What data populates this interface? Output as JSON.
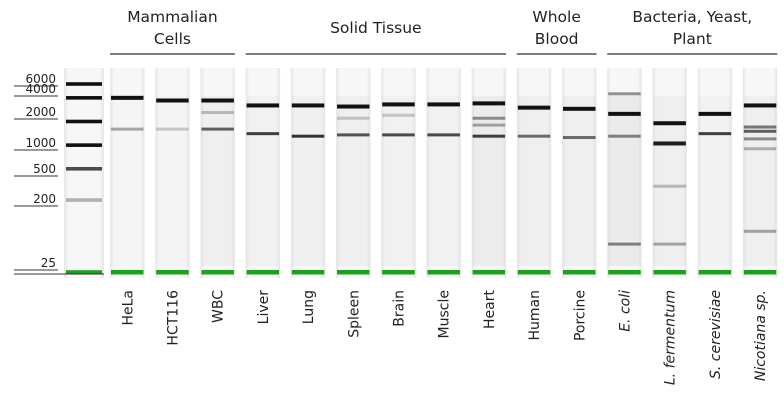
{
  "groups": [
    {
      "lines": [
        "Mammalian",
        "Cells"
      ],
      "lanes": [
        1,
        3
      ]
    },
    {
      "lines": [
        "Solid Tissue"
      ],
      "lanes": [
        4,
        9
      ]
    },
    {
      "lines": [
        "Whole",
        "Blood"
      ],
      "lanes": [
        10,
        11
      ]
    },
    {
      "lines": [
        "Bacteria, Yeast,",
        "Plant"
      ],
      "lanes": [
        12,
        15
      ]
    }
  ],
  "ladder_markers": [
    "6000",
    "4000",
    "2000",
    "1000",
    "500",
    "200",
    "25"
  ],
  "ladder_bands": [
    6000,
    4000,
    2000,
    1000,
    500,
    200,
    25
  ],
  "lanes": [
    {
      "label": "HeLa",
      "italic": false,
      "haze": 0.15,
      "bands": [
        {
          "size": 4000,
          "intensity": 1.0
        },
        {
          "size": 1600,
          "intensity": 0.35
        }
      ]
    },
    {
      "label": "HCT116",
      "italic": false,
      "haze": 0.2,
      "bands": [
        {
          "size": 3700,
          "intensity": 1.0
        },
        {
          "size": 1600,
          "intensity": 0.2
        }
      ]
    },
    {
      "label": "WBC",
      "italic": false,
      "haze": 0.5,
      "bands": [
        {
          "size": 3700,
          "intensity": 1.0
        },
        {
          "size": 1600,
          "intensity": 0.65
        },
        {
          "size": 2600,
          "intensity": 0.25
        }
      ]
    },
    {
      "label": "Liver",
      "italic": false,
      "haze": 0.35,
      "bands": [
        {
          "size": 3200,
          "intensity": 1.0
        },
        {
          "size": 1400,
          "intensity": 0.8
        }
      ]
    },
    {
      "label": "Lung",
      "italic": false,
      "haze": 0.45,
      "bands": [
        {
          "size": 3200,
          "intensity": 1.0
        },
        {
          "size": 1300,
          "intensity": 0.85
        }
      ]
    },
    {
      "label": "Spleen",
      "italic": false,
      "haze": 0.5,
      "bands": [
        {
          "size": 3100,
          "intensity": 1.0
        },
        {
          "size": 1350,
          "intensity": 0.7
        },
        {
          "size": 2200,
          "intensity": 0.2
        }
      ]
    },
    {
      "label": "Brain",
      "italic": false,
      "haze": 0.4,
      "bands": [
        {
          "size": 3300,
          "intensity": 1.0
        },
        {
          "size": 1350,
          "intensity": 0.75
        },
        {
          "size": 2400,
          "intensity": 0.2
        }
      ]
    },
    {
      "label": "Muscle",
      "italic": false,
      "haze": 0.35,
      "bands": [
        {
          "size": 3300,
          "intensity": 1.0
        },
        {
          "size": 1350,
          "intensity": 0.75
        }
      ]
    },
    {
      "label": "Heart",
      "italic": false,
      "haze": 0.75,
      "bands": [
        {
          "size": 3400,
          "intensity": 1.0
        },
        {
          "size": 1300,
          "intensity": 0.8
        },
        {
          "size": 2200,
          "intensity": 0.45
        },
        {
          "size": 1800,
          "intensity": 0.35
        }
      ]
    },
    {
      "label": "Human",
      "italic": false,
      "haze": 0.6,
      "bands": [
        {
          "size": 3000,
          "intensity": 1.0
        },
        {
          "size": 1300,
          "intensity": 0.6
        }
      ]
    },
    {
      "label": "Porcine",
      "italic": false,
      "haze": 0.6,
      "bands": [
        {
          "size": 2900,
          "intensity": 1.0
        },
        {
          "size": 1250,
          "intensity": 0.6
        }
      ]
    },
    {
      "label": "E. coli",
      "italic": true,
      "haze": 0.8,
      "bands": [
        {
          "size": 2500,
          "intensity": 1.0
        },
        {
          "size": 1300,
          "intensity": 0.5
        },
        {
          "size": 4500,
          "intensity": 0.45
        },
        {
          "size": 55,
          "intensity": 0.5
        }
      ]
    },
    {
      "label": "L. fermentum",
      "italic": true,
      "haze": 0.6,
      "bands": [
        {
          "size": 1900,
          "intensity": 1.0
        },
        {
          "size": 1050,
          "intensity": 0.95
        },
        {
          "size": 300,
          "intensity": 0.25
        },
        {
          "size": 55,
          "intensity": 0.35
        }
      ]
    },
    {
      "label": "S. cerevisiae",
      "italic": true,
      "haze": 0.3,
      "bands": [
        {
          "size": 2500,
          "intensity": 1.0
        },
        {
          "size": 1400,
          "intensity": 0.8
        }
      ]
    },
    {
      "label": "Nicotiana sp.",
      "italic": true,
      "haze": 0.55,
      "bands": [
        {
          "size": 3200,
          "intensity": 1.0
        },
        {
          "size": 1700,
          "intensity": 0.55
        },
        {
          "size": 1500,
          "intensity": 0.65
        },
        {
          "size": 1200,
          "intensity": 0.45
        },
        {
          "size": 900,
          "intensity": 0.3
        },
        {
          "size": 80,
          "intensity": 0.35
        }
      ]
    }
  ],
  "colors": {
    "band": "#111111",
    "marker": "#1f9e1f",
    "lane_bg": "#f5f5f5",
    "haze": "#b8b8b8"
  }
}
